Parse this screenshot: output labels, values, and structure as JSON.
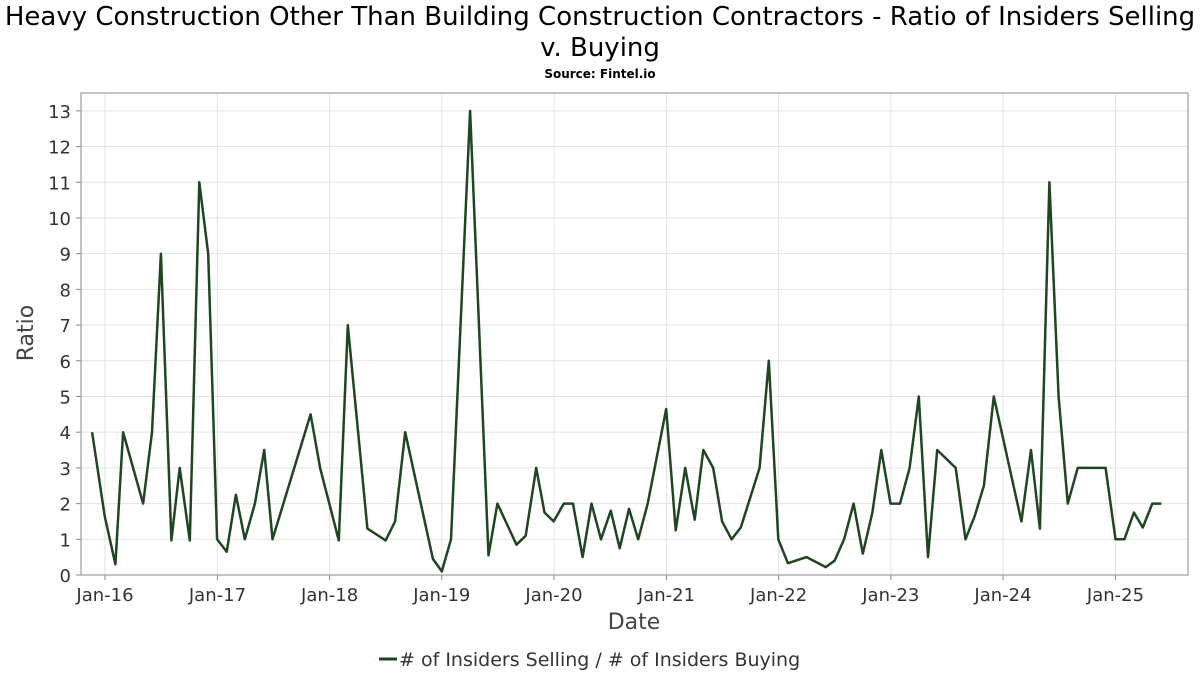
{
  "chart_data": {
    "type": "line",
    "title": "Heavy Construction Other Than Building Construction Contractors - Ratio of Insiders Selling v. Buying",
    "subtitle": "Source: Fintel.io",
    "xlabel": "Date",
    "ylabel": "Ratio",
    "x_ticks": [
      "Jan-16",
      "Jan-17",
      "Jan-18",
      "Jan-19",
      "Jan-20",
      "Jan-21",
      "Jan-22",
      "Jan-23",
      "Jan-24",
      "Jan-25"
    ],
    "y_ticks": [
      0,
      1,
      2,
      3,
      4,
      5,
      6,
      7,
      8,
      9,
      10,
      11,
      12,
      13
    ],
    "ylim": [
      0,
      13.5
    ],
    "xlim": [
      "2015-10-15",
      "2025-08-25"
    ],
    "grid": true,
    "legend_position": "bottom",
    "series": [
      {
        "name": "# of Insiders Selling / # of Insiders Buying",
        "color": "#1e4620",
        "x": [
          "2015-11-20",
          "2015-12-31",
          "2016-02-04",
          "2016-02-29",
          "2016-05-04",
          "2016-06-02",
          "2016-07-01",
          "2016-08-04",
          "2016-08-31",
          "2016-10-03",
          "2016-11-03",
          "2016-12-02",
          "2016-12-31",
          "2017-01-31",
          "2017-03-02",
          "2017-03-31",
          "2017-05-03",
          "2017-06-02",
          "2017-06-29",
          "2017-10-31",
          "2017-12-01",
          "2018-01-31",
          "2018-03-01",
          "2018-05-04",
          "2018-07-02",
          "2018-08-02",
          "2018-09-04",
          "2018-12-03",
          "2019-01-01",
          "2019-01-31",
          "2019-04-03",
          "2019-06-02",
          "2019-07-01",
          "2019-09-01",
          "2019-10-01",
          "2019-11-04",
          "2019-12-01",
          "2019-12-31",
          "2020-02-02",
          "2020-03-03",
          "2020-04-03",
          "2020-05-02",
          "2020-06-02",
          "2020-07-04",
          "2020-08-02",
          "2020-09-01",
          "2020-10-01",
          "2020-11-01",
          "2020-12-31",
          "2021-01-31",
          "2021-03-03",
          "2021-04-03",
          "2021-05-01",
          "2021-06-02",
          "2021-07-01",
          "2021-08-01",
          "2021-08-31",
          "2021-10-31",
          "2021-11-30",
          "2021-12-31",
          "2022-01-31",
          "2022-04-02",
          "2022-06-03",
          "2022-07-02",
          "2022-08-02",
          "2022-09-02",
          "2022-10-02",
          "2022-11-02",
          "2022-12-01",
          "2022-12-31",
          "2023-01-31",
          "2023-03-03",
          "2023-04-02",
          "2023-05-02",
          "2023-06-01",
          "2023-07-31",
          "2023-09-01",
          "2023-10-01",
          "2023-10-31",
          "2023-12-02",
          "2024-03-01",
          "2024-04-01",
          "2024-04-30",
          "2024-05-31",
          "2024-06-30",
          "2024-07-30",
          "2024-08-31",
          "2024-11-30",
          "2025-01-01",
          "2025-01-30",
          "2025-03-02",
          "2025-03-31",
          "2025-05-01",
          "2025-05-30"
        ],
        "y": [
          4.0,
          1.65,
          0.3,
          4.0,
          2.0,
          4.0,
          9.0,
          0.97,
          3.0,
          0.97,
          11.0,
          9.0,
          1.0,
          0.65,
          2.25,
          1.0,
          2.0,
          3.5,
          1.0,
          4.5,
          3.0,
          0.97,
          7.0,
          1.3,
          0.97,
          1.5,
          4.0,
          0.45,
          0.1,
          1.0,
          13.0,
          0.55,
          2.0,
          0.85,
          1.1,
          3.0,
          1.75,
          1.5,
          2.0,
          2.0,
          0.5,
          2.0,
          1.0,
          1.8,
          0.75,
          1.85,
          1.0,
          2.0,
          4.65,
          1.25,
          3.0,
          1.55,
          3.5,
          3.0,
          1.5,
          1.0,
          1.33,
          3.0,
          6.0,
          1.0,
          0.33,
          0.5,
          0.22,
          0.4,
          1.0,
          2.0,
          0.6,
          1.75,
          3.5,
          2.0,
          2.0,
          3.0,
          5.0,
          0.5,
          3.5,
          3.0,
          1.0,
          1.65,
          2.5,
          5.0,
          1.5,
          3.5,
          1.3,
          11.0,
          5.0,
          2.0,
          3.0,
          3.0,
          1.0,
          1.0,
          1.75,
          1.33,
          2.0,
          2.0
        ]
      }
    ]
  }
}
